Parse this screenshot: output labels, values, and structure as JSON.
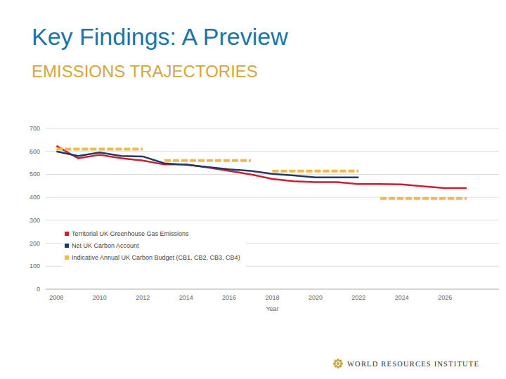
{
  "chart_data": {
    "type": "line",
    "title": "Key Findings: A Preview",
    "subtitle": "EMISSIONS TRAJECTORIES",
    "x_label": "Year",
    "annotations": [
      "WORLD RESOURCES INSTITUTE"
    ],
    "x": [
      2008,
      2009,
      2010,
      2011,
      2012,
      2013,
      2014,
      2015,
      2016,
      2017,
      2018,
      2019,
      2020,
      2021,
      2022,
      2023,
      2024,
      2025,
      2026,
      2027
    ],
    "series": [
      {
        "name": "Territorial UK Greenhouse Gas Emissions",
        "color": "#cc1f2f",
        "line_style": "solid",
        "values": [
          624,
          570,
          585,
          570,
          560,
          543,
          543,
          530,
          515,
          500,
          480,
          470,
          466,
          466,
          458,
          458,
          456,
          448,
          440,
          440
        ]
      },
      {
        "name": "Net UK Carbon Account",
        "color": "#1f3a66",
        "line_style": "solid",
        "values": [
          600,
          580,
          595,
          580,
          578,
          548,
          542,
          532,
          522,
          515,
          502,
          495,
          487,
          487,
          487,
          null,
          null,
          null,
          null,
          null
        ]
      },
      {
        "name": "Indicative Annual UK Carbon Budget (CB1, CB2, CB3, CB4)",
        "color": "#f2b84b",
        "line_style": "dashed",
        "values": [
          610,
          610,
          610,
          610,
          610,
          560,
          560,
          560,
          560,
          560,
          514,
          514,
          514,
          514,
          514,
          395,
          395,
          395,
          395,
          395
        ]
      }
    ],
    "xlim": [
      2007.5,
      2028.5
    ],
    "xticks": [
      2008,
      2010,
      2012,
      2014,
      2016,
      2018,
      2020,
      2022,
      2024,
      2026
    ],
    "ylim": [
      0,
      700
    ],
    "yticks": [
      0,
      100,
      200,
      300,
      400,
      500,
      600,
      700
    ],
    "grid": true,
    "legend": "lower left"
  }
}
